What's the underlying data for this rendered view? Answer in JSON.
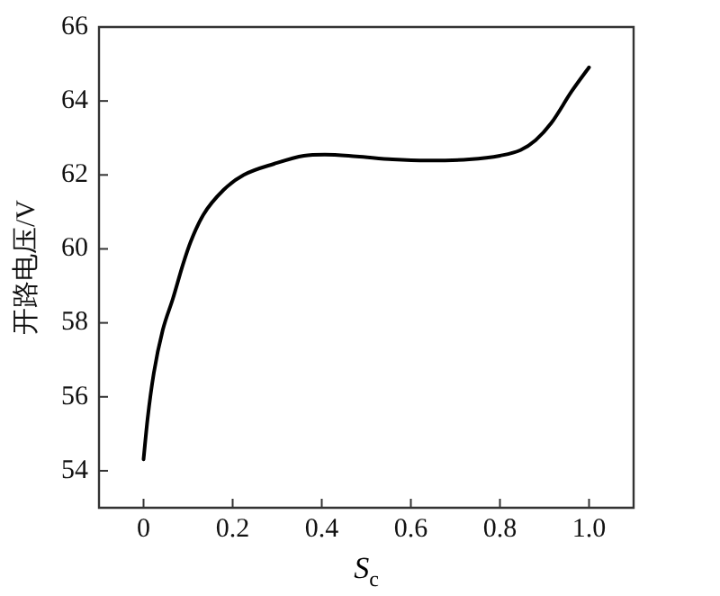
{
  "chart_data": {
    "type": "line",
    "xlabel": "S$_{c}$",
    "ylabel": "开路电压/V",
    "xlim": [
      -0.1,
      1.1
    ],
    "xticks": [
      {
        "value": 0,
        "label": "0"
      },
      0.2,
      0.4,
      0.6,
      0.8,
      {
        "value": 1,
        "label": "1.0"
      }
    ],
    "ylim": [
      53,
      66
    ],
    "yticks": [
      54,
      56,
      58,
      60,
      62,
      64,
      66
    ],
    "grid": false,
    "legend": false,
    "marker": "none",
    "line_style": "solid",
    "series": [
      {
        "color": "#000000",
        "x": [
          0,
          0.009,
          0.023,
          0.043,
          0.066,
          0.089,
          0.106,
          0.134,
          0.18,
          0.225,
          0.293,
          0.36,
          0.407,
          0.478,
          0.559,
          0.639,
          0.731,
          0.8,
          0.846,
          0.88,
          0.915,
          0.961,
          1.0
        ],
        "values": [
          54.31,
          55.4,
          56.64,
          57.8,
          58.66,
          59.6,
          60.2,
          60.92,
          61.6,
          62.0,
          62.3,
          62.52,
          62.55,
          62.5,
          62.42,
          62.39,
          62.42,
          62.52,
          62.67,
          62.94,
          63.4,
          64.26,
          64.91
        ]
      }
    ]
  }
}
